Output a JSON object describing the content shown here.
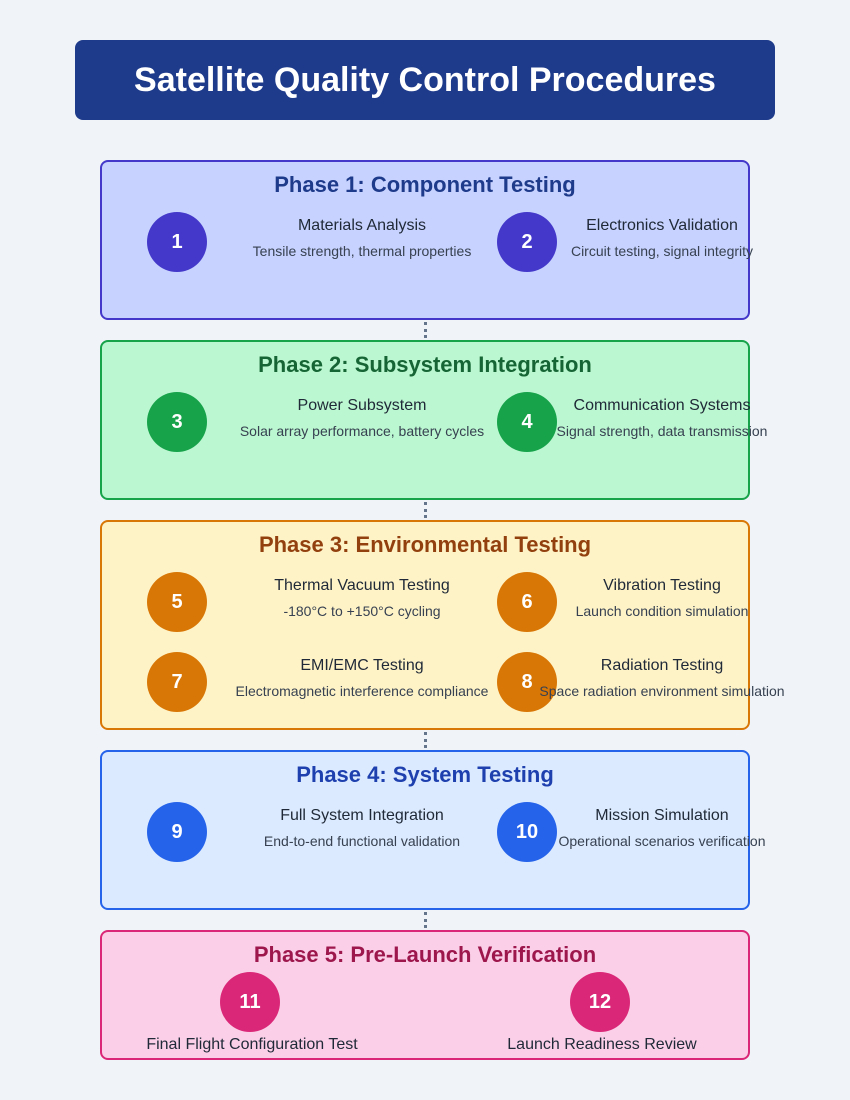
{
  "title": "Satellite Quality Control Procedures",
  "colors": {
    "title_bg": "#1e3a8a",
    "phase1": {
      "bg": "#c7d2fe",
      "border": "#4338ca",
      "text": "#1e3a8a",
      "circle": "#4338ca"
    },
    "phase2": {
      "bg": "#bbf7d0",
      "border": "#16a34a",
      "text": "#166534",
      "circle": "#16a34a"
    },
    "phase3": {
      "bg": "#fef3c7",
      "border": "#d97706",
      "text": "#92400e",
      "circle": "#d97706"
    },
    "phase4": {
      "bg": "#dbeafe",
      "border": "#2563eb",
      "text": "#1e40af",
      "circle": "#2563eb"
    },
    "phase5": {
      "bg": "#fbcfe8",
      "border": "#db2777",
      "text": "#9d174d",
      "circle": "#db2777"
    }
  },
  "phases": [
    {
      "title": "Phase 1: Component Testing",
      "steps": [
        {
          "num": "1",
          "name": "Materials Analysis",
          "desc": "Tensile strength, thermal properties"
        },
        {
          "num": "2",
          "name": "Electronics Validation",
          "desc": "Circuit testing, signal integrity"
        }
      ]
    },
    {
      "title": "Phase 2: Subsystem Integration",
      "steps": [
        {
          "num": "3",
          "name": "Power Subsystem",
          "desc": "Solar array performance, battery cycles"
        },
        {
          "num": "4",
          "name": "Communication Systems",
          "desc": "Signal strength, data transmission"
        }
      ]
    },
    {
      "title": "Phase 3: Environmental Testing",
      "steps": [
        {
          "num": "5",
          "name": "Thermal Vacuum Testing",
          "desc": "-180°C to +150°C cycling"
        },
        {
          "num": "6",
          "name": "Vibration Testing",
          "desc": "Launch condition simulation"
        },
        {
          "num": "7",
          "name": "EMI/EMC Testing",
          "desc": "Electromagnetic interference compliance"
        },
        {
          "num": "8",
          "name": "Radiation Testing",
          "desc": "Space radiation environment simulation"
        }
      ]
    },
    {
      "title": "Phase 4: System Testing",
      "steps": [
        {
          "num": "9",
          "name": "Full System Integration",
          "desc": "End-to-end functional validation"
        },
        {
          "num": "10",
          "name": "Mission Simulation",
          "desc": "Operational scenarios verification"
        }
      ]
    },
    {
      "title": "Phase 5: Pre-Launch Verification",
      "steps": [
        {
          "num": "11",
          "name": "Final Flight Configuration Test"
        },
        {
          "num": "12",
          "name": "Launch Readiness Review"
        }
      ]
    }
  ]
}
